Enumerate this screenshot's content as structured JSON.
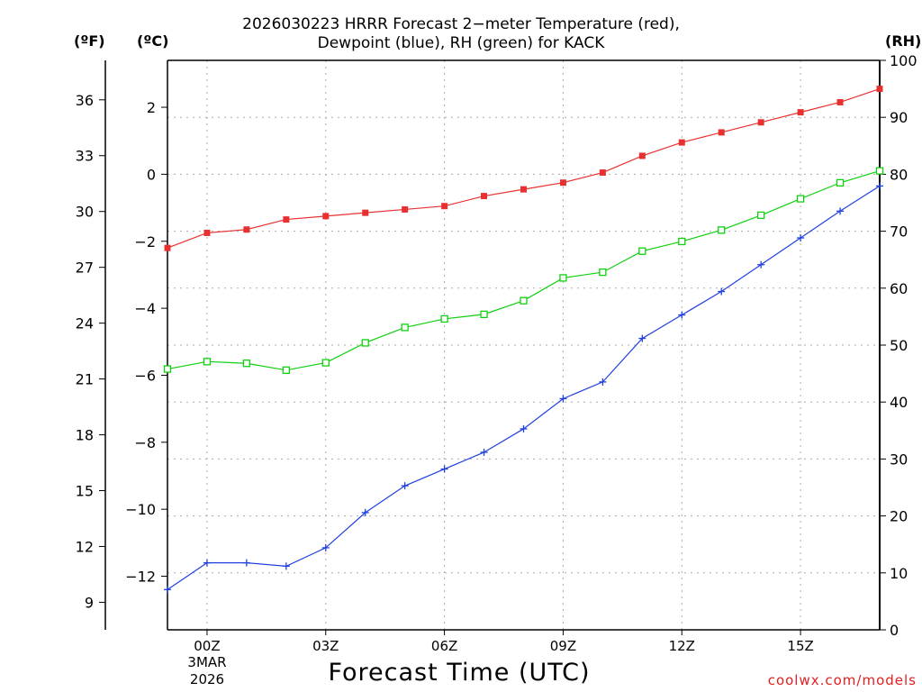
{
  "title": {
    "line1": "2026030223 HRRR Forecast 2−meter Temperature (red),",
    "line2": "Dewpoint (blue), RH (green) for KACK"
  },
  "units": {
    "fahrenheit": "(ºF)",
    "celsius": "(ºC)",
    "rh": "(RH)"
  },
  "date_label": {
    "day_month": "3MAR",
    "year": "2026"
  },
  "credit": "coolwx.com/models",
  "colors": {
    "temperature": "#e83030",
    "dewpoint": "#2040e0",
    "rh": "#10d010",
    "grid": "#aaaaaa"
  },
  "chart_data": {
    "type": "line",
    "xlabel": "Forecast Time (UTC)",
    "x_hours": [
      -1,
      0,
      1,
      2,
      3,
      4,
      5,
      6,
      7,
      8,
      9,
      10,
      11,
      12,
      13,
      14,
      15,
      16,
      17
    ],
    "x_ticks": [
      {
        "hour": 0,
        "label": "00Z"
      },
      {
        "hour": 3,
        "label": "03Z"
      },
      {
        "hour": 6,
        "label": "06Z"
      },
      {
        "hour": 9,
        "label": "09Z"
      },
      {
        "hour": 12,
        "label": "12Z"
      },
      {
        "hour": 15,
        "label": "15Z"
      }
    ],
    "xlim": [
      -1,
      17
    ],
    "celsius_axis": {
      "ylim": [
        -13.6,
        3.4
      ],
      "ticks": [
        -12,
        -10,
        -8,
        -6,
        -4,
        -2,
        0,
        2
      ]
    },
    "fahrenheit_axis": {
      "ticks": [
        9,
        12,
        15,
        18,
        21,
        24,
        27,
        30,
        33,
        36
      ]
    },
    "rh_axis": {
      "ylim": [
        0,
        100
      ],
      "ticks": [
        0,
        10,
        20,
        30,
        40,
        50,
        60,
        70,
        80,
        90,
        100
      ]
    },
    "series": [
      {
        "name": "Temperature",
        "axis": "celsius",
        "marker": "filled-square",
        "values": [
          -2.2,
          -1.75,
          -1.65,
          -1.35,
          -1.25,
          -1.15,
          -1.05,
          -0.95,
          -0.65,
          -0.45,
          -0.25,
          0.05,
          0.55,
          0.95,
          1.25,
          1.55,
          1.85,
          2.15,
          2.55
        ]
      },
      {
        "name": "Dewpoint",
        "axis": "celsius",
        "marker": "plus",
        "values": [
          -12.4,
          -11.6,
          -11.6,
          -11.7,
          -11.15,
          -10.1,
          -9.3,
          -8.8,
          -8.3,
          -7.6,
          -6.7,
          -6.2,
          -4.9,
          -4.2,
          -3.5,
          -2.7,
          -1.9,
          -1.1,
          -0.35
        ]
      },
      {
        "name": "RH",
        "axis": "rh",
        "marker": "open-square",
        "values": [
          45.8,
          47.1,
          46.8,
          45.6,
          46.9,
          50.4,
          53.1,
          54.6,
          55.4,
          57.8,
          61.8,
          62.8,
          66.5,
          68.2,
          70.2,
          72.8,
          75.7,
          78.5,
          80.6
        ]
      }
    ]
  }
}
